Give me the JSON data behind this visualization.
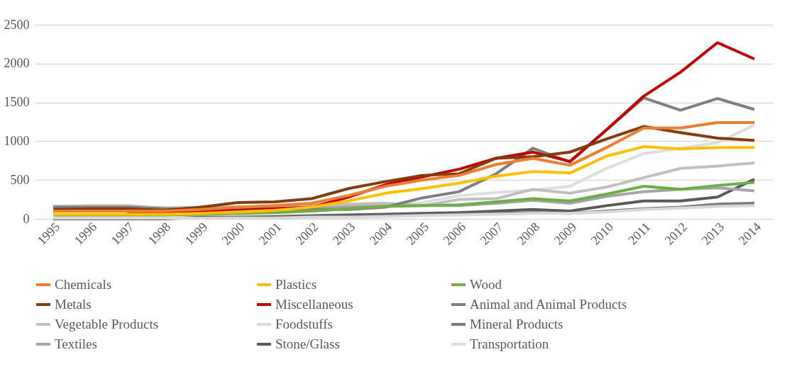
{
  "chart_data": {
    "type": "line",
    "categories": [
      "1995",
      "1996",
      "1997",
      "1998",
      "1999",
      "2000",
      "2001",
      "2002",
      "2003",
      "2004",
      "2005",
      "2006",
      "2007",
      "2008",
      "2009",
      "2010",
      "2011",
      "2012",
      "2013",
      "2014"
    ],
    "ylim": [
      0,
      2500
    ],
    "yticks": [
      0,
      500,
      1000,
      1500,
      2000,
      2500
    ],
    "grid": "y",
    "legend": "bottom",
    "marker": "none",
    "line_style": "solid",
    "series": [
      {
        "name": "Chemicals",
        "color": "#ed7d31",
        "values": [
          100,
          100,
          100,
          100,
          120,
          150,
          170,
          200,
          300,
          420,
          500,
          560,
          700,
          780,
          690,
          920,
          1170,
          1170,
          1240,
          1240
        ]
      },
      {
        "name": "Plastics",
        "color": "#ffc000",
        "values": [
          60,
          60,
          60,
          60,
          70,
          90,
          110,
          150,
          230,
          330,
          390,
          460,
          550,
          610,
          590,
          810,
          930,
          900,
          920,
          920
        ]
      },
      {
        "name": "Wood",
        "color": "#70ad47",
        "values": [
          50,
          50,
          50,
          50,
          60,
          70,
          80,
          100,
          130,
          160,
          170,
          180,
          220,
          260,
          230,
          320,
          420,
          380,
          430,
          470
        ]
      },
      {
        "name": "Metals",
        "color": "#843c0c",
        "values": [
          120,
          130,
          130,
          110,
          150,
          210,
          220,
          260,
          390,
          480,
          560,
          580,
          780,
          800,
          860,
          1030,
          1190,
          1110,
          1040,
          1010
        ]
      },
      {
        "name": "Miscellaneous",
        "color": "#c00000",
        "values": [
          null,
          null,
          90,
          90,
          100,
          110,
          130,
          150,
          280,
          440,
          540,
          640,
          780,
          860,
          740,
          1150,
          1580,
          1890,
          2270,
          2060
        ]
      },
      {
        "name": "Animal and Animal Products",
        "color": "#7f7f7f",
        "values": [
          150,
          150,
          150,
          130,
          130,
          130,
          130,
          120,
          120,
          150,
          270,
          350,
          580,
          910,
          730,
          1150,
          1560,
          1400,
          1550,
          1410
        ]
      },
      {
        "name": "Vegetable Products",
        "color": "#bfbfbf",
        "values": [
          160,
          170,
          170,
          140,
          150,
          150,
          160,
          170,
          190,
          200,
          170,
          250,
          260,
          380,
          330,
          410,
          530,
          650,
          680,
          720
        ]
      },
      {
        "name": "Foodstuffs",
        "color": "#d9d9d9",
        "values": [
          10,
          10,
          10,
          10,
          10,
          10,
          10,
          20,
          20,
          30,
          40,
          50,
          60,
          70,
          70,
          90,
          120,
          140,
          160,
          170
        ]
      },
      {
        "name": "Mineral Products",
        "color": "#7b7b7b",
        "values": [
          null,
          null,
          10,
          10,
          10,
          20,
          20,
          30,
          30,
          40,
          50,
          60,
          70,
          80,
          70,
          100,
          130,
          150,
          190,
          200
        ]
      },
      {
        "name": "Textiles",
        "color": "#a5a5a5",
        "values": [
          160,
          160,
          160,
          140,
          140,
          150,
          150,
          150,
          160,
          170,
          170,
          170,
          200,
          240,
          200,
          290,
          350,
          380,
          400,
          360
        ]
      },
      {
        "name": "Stone/Glass",
        "color": "#595959",
        "values": [
          0,
          0,
          0,
          0,
          20,
          20,
          30,
          40,
          50,
          60,
          70,
          80,
          100,
          120,
          100,
          170,
          230,
          230,
          280,
          510
        ]
      },
      {
        "name": "Transportation",
        "color": "#dedede",
        "values": [
          40,
          40,
          40,
          40,
          50,
          60,
          80,
          100,
          130,
          160,
          210,
          300,
          340,
          370,
          420,
          650,
          840,
          910,
          980,
          1210
        ]
      }
    ]
  }
}
